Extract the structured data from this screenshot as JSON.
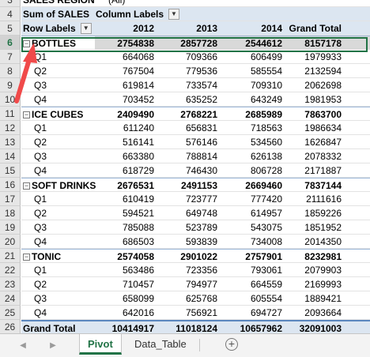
{
  "filter_row": {
    "label": "SALES REGION",
    "value": "(All)"
  },
  "header": {
    "measure": "Sum of SALES",
    "column_labels": "Column Labels",
    "row_labels": "Row Labels",
    "years": [
      "2012",
      "2013",
      "2014"
    ],
    "grand_total": "Grand Total"
  },
  "row_numbers": [
    "3",
    "4",
    "5",
    "6",
    "7",
    "8",
    "9",
    "10",
    "11",
    "12",
    "13",
    "14",
    "15",
    "16",
    "17",
    "18",
    "19",
    "20",
    "21",
    "22",
    "23",
    "24",
    "25",
    "26"
  ],
  "groups": [
    {
      "name": "BOTTLES",
      "values": [
        "2754838",
        "2857728",
        "2544612",
        "8157178"
      ],
      "items": [
        {
          "label": "Q1",
          "values": [
            "664068",
            "709366",
            "606499",
            "1979933"
          ]
        },
        {
          "label": "Q2",
          "values": [
            "767504",
            "779536",
            "585554",
            "2132594"
          ]
        },
        {
          "label": "Q3",
          "values": [
            "619814",
            "733574",
            "709310",
            "2062698"
          ]
        },
        {
          "label": "Q4",
          "values": [
            "703452",
            "635252",
            "643249",
            "1981953"
          ]
        }
      ]
    },
    {
      "name": "ICE CUBES",
      "values": [
        "2409490",
        "2768221",
        "2685989",
        "7863700"
      ],
      "items": [
        {
          "label": "Q1",
          "values": [
            "611240",
            "656831",
            "718563",
            "1986634"
          ]
        },
        {
          "label": "Q2",
          "values": [
            "516141",
            "576146",
            "534560",
            "1626847"
          ]
        },
        {
          "label": "Q3",
          "values": [
            "663380",
            "788814",
            "626138",
            "2078332"
          ]
        },
        {
          "label": "Q4",
          "values": [
            "618729",
            "746430",
            "806728",
            "2171887"
          ]
        }
      ]
    },
    {
      "name": "SOFT DRINKS",
      "values": [
        "2676531",
        "2491153",
        "2669460",
        "7837144"
      ],
      "items": [
        {
          "label": "Q1",
          "values": [
            "610419",
            "723777",
            "777420",
            "2111616"
          ]
        },
        {
          "label": "Q2",
          "values": [
            "594521",
            "649748",
            "614957",
            "1859226"
          ]
        },
        {
          "label": "Q3",
          "values": [
            "785088",
            "523789",
            "543075",
            "1851952"
          ]
        },
        {
          "label": "Q4",
          "values": [
            "686503",
            "593839",
            "734008",
            "2014350"
          ]
        }
      ]
    },
    {
      "name": "TONIC",
      "values": [
        "2574058",
        "2901022",
        "2757901",
        "8232981"
      ],
      "items": [
        {
          "label": "Q1",
          "values": [
            "563486",
            "723356",
            "793061",
            "2079903"
          ]
        },
        {
          "label": "Q2",
          "values": [
            "710457",
            "794977",
            "664559",
            "2169993"
          ]
        },
        {
          "label": "Q3",
          "values": [
            "658099",
            "625768",
            "605554",
            "1889421"
          ]
        },
        {
          "label": "Q4",
          "values": [
            "642016",
            "756921",
            "694727",
            "2093664"
          ]
        }
      ]
    }
  ],
  "grand_total_row": {
    "label": "Grand Total",
    "values": [
      "10414917",
      "11018124",
      "10657962",
      "32091003"
    ]
  },
  "tabs": [
    "Pivot",
    "Data_Table"
  ],
  "active_tab": "Pivot",
  "colors": {
    "excel_green": "#217346",
    "pivot_header": "#dce6f1",
    "arrow": "#f04a4a"
  }
}
